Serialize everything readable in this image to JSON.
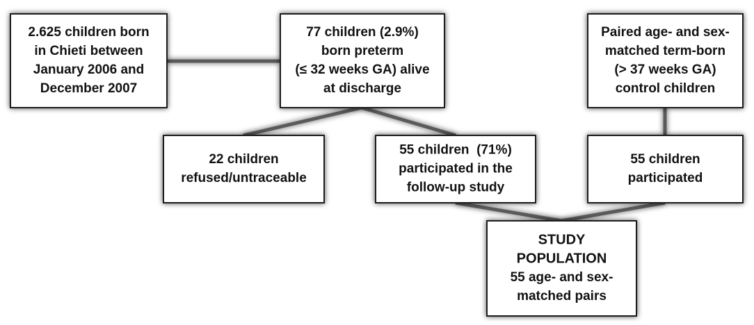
{
  "nodes": [
    {
      "lines": [
        "2.625 children born",
        "in Chieti between",
        "January 2006 and",
        "December 2007"
      ]
    },
    {
      "lines": [
        "77 children (2.9%)",
        "born preterm",
        "(≤ 32 weeks GA) alive",
        "at discharge"
      ]
    },
    {
      "lines": [
        "Paired age- and sex-",
        "matched term-born",
        "(> 37 weeks GA)",
        "control children"
      ]
    },
    {
      "lines": [
        "22 children",
        "refused/untraceable"
      ]
    },
    {
      "lines": [
        "55 children  (71%)",
        "participated in the",
        "follow-up study"
      ]
    },
    {
      "lines": [
        "55 children",
        "participated"
      ]
    },
    {
      "heading": [
        "STUDY",
        "POPULATION"
      ],
      "lines": [
        "55 age- and sex-",
        "matched pairs"
      ]
    }
  ]
}
